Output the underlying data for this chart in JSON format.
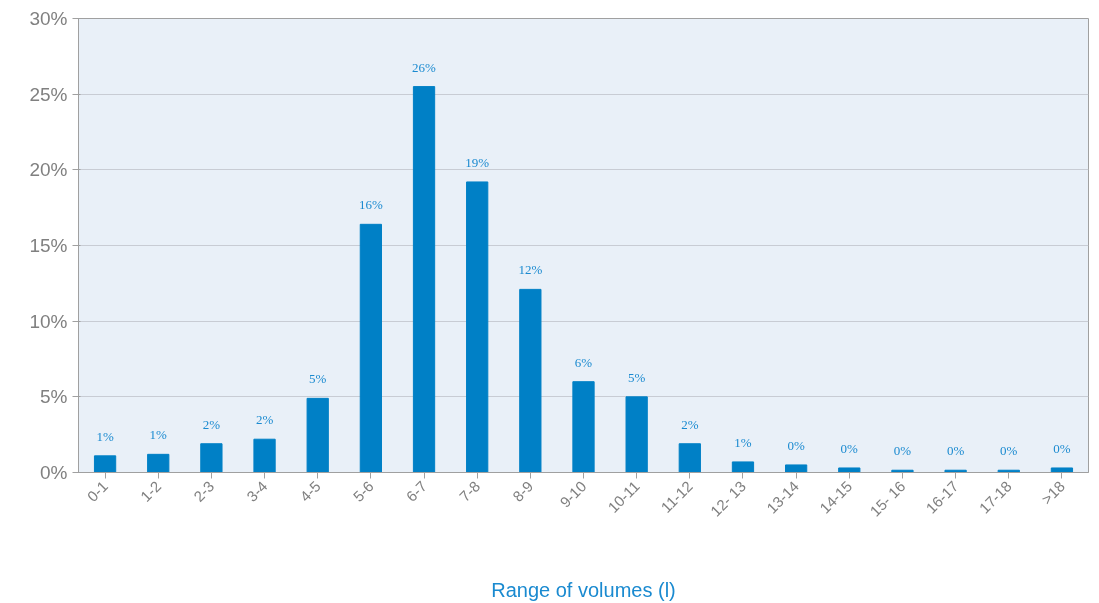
{
  "chart_data": {
    "type": "bar",
    "xlabel": "Range of volumes (l)",
    "categories": [
      "0-1",
      "1-2",
      "2-3",
      "3-4",
      "4-5",
      "5-6",
      "6-7",
      "7-8",
      "8-9",
      "9-10",
      "10-11",
      "11-12",
      "12- 13",
      "13-14",
      "14-15",
      "15- 16",
      "16-17",
      "17-18",
      ">18"
    ],
    "values": [
      1.1,
      1.2,
      1.9,
      2.2,
      4.9,
      16.4,
      25.5,
      19.2,
      12.1,
      6.0,
      5.0,
      1.9,
      0.7,
      0.5,
      0.3,
      0.15,
      0.15,
      0.15,
      0.3
    ],
    "value_labels": [
      "1%",
      "1%",
      "2%",
      "2%",
      "5%",
      "16%",
      "26%",
      "19%",
      "12%",
      "6%",
      "5%",
      "2%",
      "1%",
      "0%",
      "0%",
      "0%",
      "0%",
      "0%",
      "0%"
    ],
    "color": "#0080c6",
    "ylim": [
      0,
      30
    ],
    "yticks": [
      {
        "value": 0,
        "label": "0%"
      },
      {
        "value": 5,
        "label": "5%"
      },
      {
        "value": 10,
        "label": "10%"
      },
      {
        "value": 15,
        "label": "15%"
      },
      {
        "value": 20,
        "label": "20%"
      },
      {
        "value": 25,
        "label": "25%"
      },
      {
        "value": 30,
        "label": "30%"
      }
    ],
    "grid": "y"
  }
}
